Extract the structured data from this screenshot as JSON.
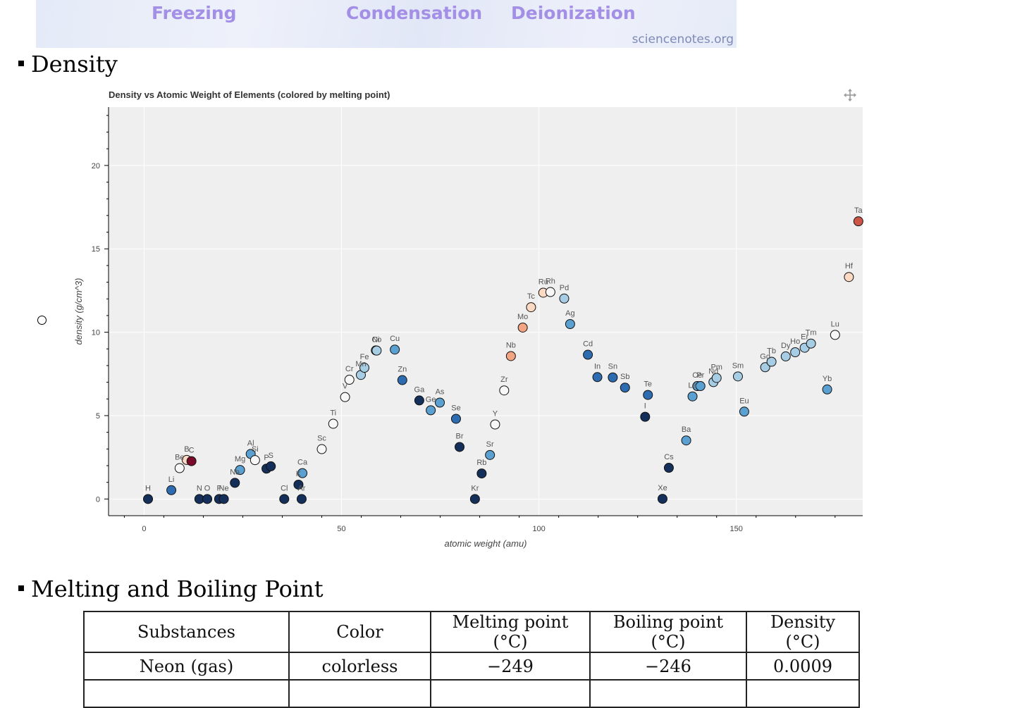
{
  "banner": {
    "words": [
      "Freezing",
      "Condensation",
      "Deionization"
    ],
    "site": "sciencenotes.org"
  },
  "sections": {
    "density": "Density",
    "melting": "Melting and Boiling Point"
  },
  "chart_data": {
    "type": "scatter",
    "title": "Density vs Atomic Weight of Elements (colored by melting point)",
    "xlabel": "atomic weight (amu)",
    "ylabel": "density (g/cm^3)",
    "xlim": [
      -9,
      182
    ],
    "ylim": [
      -1,
      23.5
    ],
    "xticks": [
      0,
      50,
      100,
      150
    ],
    "yticks": [
      0,
      5,
      10,
      15,
      20
    ],
    "grid": true,
    "colors": {
      "c0": "#14305a",
      "c1": "#2d6cb0",
      "c2": "#5aa1d2",
      "c3": "#a7cde4",
      "c4": "#f7f7f7",
      "c5": "#fcd9c2",
      "c6": "#f2a483",
      "c7": "#cd5547",
      "c8": "#7a0a2a"
    },
    "points": [
      {
        "l": "H",
        "x": 1,
        "y": 0,
        "c": "c0"
      },
      {
        "l": "Li",
        "x": 6.9,
        "y": 0.53,
        "c": "c1"
      },
      {
        "l": "Be",
        "x": 9,
        "y": 1.85,
        "c": "c4"
      },
      {
        "l": "B",
        "x": 10.8,
        "y": 2.34,
        "c": "c5"
      },
      {
        "l": "C",
        "x": 12,
        "y": 2.27,
        "c": "c8"
      },
      {
        "l": "N",
        "x": 14,
        "y": 0,
        "c": "c0"
      },
      {
        "l": "O",
        "x": 16,
        "y": 0,
        "c": "c0"
      },
      {
        "l": "F",
        "x": 19,
        "y": 0,
        "c": "c0"
      },
      {
        "l": "Ne",
        "x": 20.2,
        "y": 0,
        "c": "c0"
      },
      {
        "l": "Na",
        "x": 23,
        "y": 0.97,
        "c": "c0"
      },
      {
        "l": "Mg",
        "x": 24.3,
        "y": 1.74,
        "c": "c2"
      },
      {
        "l": "Al",
        "x": 27,
        "y": 2.7,
        "c": "c2"
      },
      {
        "l": "Si",
        "x": 28.1,
        "y": 2.33,
        "c": "c4"
      },
      {
        "l": "P",
        "x": 31,
        "y": 1.82,
        "c": "c0"
      },
      {
        "l": "S",
        "x": 32.1,
        "y": 1.96,
        "c": "c0"
      },
      {
        "l": "Cl",
        "x": 35.5,
        "y": 0,
        "c": "c0"
      },
      {
        "l": "K",
        "x": 39.1,
        "y": 0.86,
        "c": "c0"
      },
      {
        "l": "Ar",
        "x": 39.9,
        "y": 0,
        "c": "c0"
      },
      {
        "l": "Ca",
        "x": 40.1,
        "y": 1.55,
        "c": "c2"
      },
      {
        "l": "Sc",
        "x": 45,
        "y": 2.99,
        "c": "c4"
      },
      {
        "l": "Ti",
        "x": 47.9,
        "y": 4.51,
        "c": "c4"
      },
      {
        "l": "V",
        "x": 50.9,
        "y": 6.11,
        "c": "c4"
      },
      {
        "l": "Cr",
        "x": 52,
        "y": 7.15,
        "c": "c4"
      },
      {
        "l": "Mn",
        "x": 54.9,
        "y": 7.44,
        "c": "c3"
      },
      {
        "l": "Fe",
        "x": 55.8,
        "y": 7.87,
        "c": "c3"
      },
      {
        "l": "Ni",
        "x": 58.7,
        "y": 8.91,
        "c": "c3"
      },
      {
        "l": "Co",
        "x": 58.9,
        "y": 8.9,
        "c": "c3"
      },
      {
        "l": "Cu",
        "x": 63.5,
        "y": 8.96,
        "c": "c2"
      },
      {
        "l": "Zn",
        "x": 65.4,
        "y": 7.13,
        "c": "c1"
      },
      {
        "l": "Ga",
        "x": 69.7,
        "y": 5.91,
        "c": "c0"
      },
      {
        "l": "Ge",
        "x": 72.6,
        "y": 5.32,
        "c": "c2"
      },
      {
        "l": "As",
        "x": 74.9,
        "y": 5.78,
        "c": "c2"
      },
      {
        "l": "Se",
        "x": 79,
        "y": 4.81,
        "c": "c1"
      },
      {
        "l": "Br",
        "x": 79.9,
        "y": 3.12,
        "c": "c0"
      },
      {
        "l": "Kr",
        "x": 83.8,
        "y": 0,
        "c": "c0"
      },
      {
        "l": "Rb",
        "x": 85.5,
        "y": 1.53,
        "c": "c0"
      },
      {
        "l": "Sr",
        "x": 87.6,
        "y": 2.64,
        "c": "c2"
      },
      {
        "l": "Y",
        "x": 88.9,
        "y": 4.47,
        "c": "c4"
      },
      {
        "l": "Zr",
        "x": 91.2,
        "y": 6.51,
        "c": "c4"
      },
      {
        "l": "Nb",
        "x": 92.9,
        "y": 8.57,
        "c": "c6"
      },
      {
        "l": "Mo",
        "x": 95.9,
        "y": 10.28,
        "c": "c6"
      },
      {
        "l": "Tc",
        "x": 98,
        "y": 11.5,
        "c": "c5"
      },
      {
        "l": "Ru",
        "x": 101.1,
        "y": 12.37,
        "c": "c5"
      },
      {
        "l": "Rh",
        "x": 102.9,
        "y": 12.41,
        "c": "c4"
      },
      {
        "l": "Pd",
        "x": 106.4,
        "y": 12.02,
        "c": "c3"
      },
      {
        "l": "Ag",
        "x": 107.9,
        "y": 10.49,
        "c": "c2"
      },
      {
        "l": "Cd",
        "x": 112.4,
        "y": 8.65,
        "c": "c1"
      },
      {
        "l": "In",
        "x": 114.8,
        "y": 7.31,
        "c": "c1"
      },
      {
        "l": "Sn",
        "x": 118.7,
        "y": 7.29,
        "c": "c1"
      },
      {
        "l": "Sb",
        "x": 121.8,
        "y": 6.68,
        "c": "c1"
      },
      {
        "l": "Te",
        "x": 127.6,
        "y": 6.24,
        "c": "c1"
      },
      {
        "l": "I",
        "x": 126.9,
        "y": 4.93,
        "c": "c0"
      },
      {
        "l": "Xe",
        "x": 131.3,
        "y": 0.01,
        "c": "c0"
      },
      {
        "l": "Cs",
        "x": 132.9,
        "y": 1.87,
        "c": "c0"
      },
      {
        "l": "Ba",
        "x": 137.3,
        "y": 3.51,
        "c": "c2"
      },
      {
        "l": "La",
        "x": 138.9,
        "y": 6.15,
        "c": "c2"
      },
      {
        "l": "Ce",
        "x": 140.1,
        "y": 6.77,
        "c": "c2"
      },
      {
        "l": "Pr",
        "x": 140.9,
        "y": 6.77,
        "c": "c2"
      },
      {
        "l": "Nd",
        "x": 144.2,
        "y": 7.01,
        "c": "c3"
      },
      {
        "l": "Pm",
        "x": 145,
        "y": 7.26,
        "c": "c3"
      },
      {
        "l": "Sm",
        "x": 150.4,
        "y": 7.35,
        "c": "c3"
      },
      {
        "l": "Eu",
        "x": 152,
        "y": 5.24,
        "c": "c2"
      },
      {
        "l": "Gd",
        "x": 157.3,
        "y": 7.9,
        "c": "c3"
      },
      {
        "l": "Tb",
        "x": 158.9,
        "y": 8.23,
        "c": "c3"
      },
      {
        "l": "Dy",
        "x": 162.5,
        "y": 8.55,
        "c": "c3"
      },
      {
        "l": "Ho",
        "x": 164.9,
        "y": 8.8,
        "c": "c3"
      },
      {
        "l": "Er",
        "x": 167.3,
        "y": 9.07,
        "c": "c3"
      },
      {
        "l": "Tm",
        "x": 168.9,
        "y": 9.32,
        "c": "c3"
      },
      {
        "l": "Yb",
        "x": 173,
        "y": 6.57,
        "c": "c2"
      },
      {
        "l": "Lu",
        "x": 175,
        "y": 9.84,
        "c": "c4"
      },
      {
        "l": "Hf",
        "x": 178.5,
        "y": 13.31,
        "c": "c5"
      },
      {
        "l": "Ta",
        "x": 180.9,
        "y": 16.65,
        "c": "c7"
      }
    ]
  },
  "table": {
    "headers": [
      "Substances",
      "Color",
      "Melting point (°C)",
      "Boiling point (°C)",
      "Density (°C)"
    ],
    "rows": [
      [
        "Neon (gas)",
        "colorless",
        "−249",
        "−246",
        "0.0009"
      ]
    ]
  }
}
